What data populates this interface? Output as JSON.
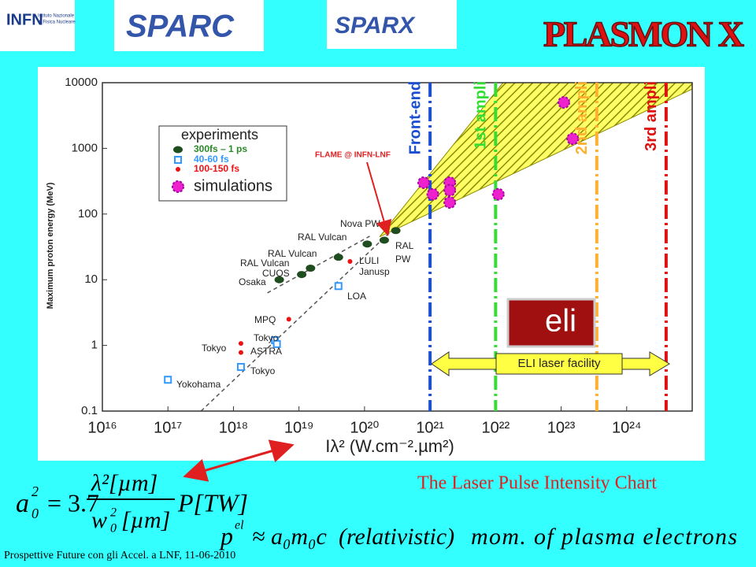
{
  "header": {
    "logos": [
      "INFN",
      "Istituto Nazionale",
      "di Fisica Nucleare",
      "SPARC",
      "SPARX",
      "PLASMON X"
    ]
  },
  "chart_data": {
    "type": "scatter",
    "xscale": "log",
    "yscale": "log",
    "x_label": "Iλ² (W.cm⁻².µm²)",
    "y_label": "Maximum proton energy (MeV)",
    "xlim": [
      1e+16,
      1e+25
    ],
    "ylim": [
      0.1,
      10000
    ],
    "xticks": [
      {
        "value": 1e+16,
        "label": "10¹⁶"
      },
      {
        "value": 1e+17,
        "label": "10¹⁷"
      },
      {
        "value": 1e+18,
        "label": "10¹⁸"
      },
      {
        "value": 1e+19,
        "label": "10¹⁹"
      },
      {
        "value": 1e+20,
        "label": "10²⁰"
      },
      {
        "value": 1e+21,
        "label": "10²¹"
      },
      {
        "value": 1e+22,
        "label": "10²²"
      },
      {
        "value": 1e+23,
        "label": "10²³"
      },
      {
        "value": 1e+24,
        "label": "10²⁴"
      }
    ],
    "yticks": [
      0.1,
      1,
      10,
      100,
      1000,
      10000
    ],
    "legend_title": "experiments",
    "series": [
      {
        "name": "300fs – 1 ps",
        "color": "#1f4d1f",
        "marker": "ellipse",
        "x": [
          5e+18,
          1.1e+19,
          1.5e+19,
          4e+19,
          1.1e+20,
          2e+20,
          3e+20
        ],
        "values": [
          10,
          12,
          15,
          22,
          35,
          40,
          56
        ]
      },
      {
        "name": "40-60 fs",
        "color": "#3399ff",
        "marker": "square",
        "x": [
          1e+17,
          1.3e+18,
          4.3e+18,
          4.6e+18,
          4e+19
        ],
        "values": [
          0.3,
          0.47,
          1.2,
          1.05,
          8
        ]
      },
      {
        "name": "100-150 fs",
        "color": "#ee1111",
        "marker": "dot",
        "x": [
          1.3e+18,
          1.3e+18,
          7e+18,
          6e+19
        ],
        "values": [
          1.07,
          0.78,
          2.5,
          19
        ]
      },
      {
        "name": "simulations",
        "color": "#ee22cc",
        "marker": "blob",
        "x": [
          8e+20,
          1.1e+21,
          2e+21,
          2e+21,
          2e+21,
          1.1e+22,
          1.1e+23,
          1.5e+23
        ],
        "values": [
          300,
          200,
          300,
          230,
          150,
          200,
          5000,
          1400
        ]
      }
    ],
    "annotations": [
      "Nova PW",
      "RAL Vulcan",
      "RAL",
      "PW",
      "RAL Vulcan",
      "RAL Vulcan",
      "CUOS",
      "Osaka",
      "LULI",
      "Janusp",
      "LOA",
      "MPQ",
      "Tokyo",
      "Tokyo",
      "ASTRA",
      "Tokyo",
      "Yokohama"
    ],
    "vertical_lines": [
      {
        "name": "Front-end",
        "x": 1e+21,
        "color": "#1a4fd0"
      },
      {
        "name": "1st ampli",
        "x": 1e+22,
        "color": "#33dd33"
      },
      {
        "name": "2nd ampli",
        "x": 3.5e+23,
        "color": "#ffb030"
      },
      {
        "name": "3rd ampli",
        "x": 4e+24,
        "color": "#dd1111"
      }
    ],
    "band": {
      "x": [
        1.7e+20,
        1.3e+22,
        1e+25,
        1e+25
      ],
      "values": [
        45,
        10000,
        10000,
        8000
      ]
    },
    "trend_lines": [
      {
        "x": [
          3.2e+17,
          2.8e+20
        ],
        "values": [
          0.1,
          60
        ]
      },
      {
        "x": [
          3.3e+18,
          1.2e+20
        ],
        "values": [
          6.3,
          46
        ]
      }
    ],
    "flame_label": "FLAME @ INFN-LNF",
    "facility_label": "ELI laser facility",
    "logo_text": "eli"
  },
  "caption": "The Laser Pulse Intensity Chart",
  "formulas": [
    {
      "parts": [
        "a",
        "0",
        "2",
        "= 3.7",
        "λ²[µm]",
        "w",
        "0",
        "2",
        "[µm]",
        "P[TW]"
      ]
    },
    {
      "parts": [
        "p",
        "el",
        "≈ a₀m₀c",
        "(relativistic)",
        "mom.  of   plasma   electrons"
      ]
    }
  ],
  "footer": "Prospettive Future con gli Accel. a LNF,  11-06-2010"
}
